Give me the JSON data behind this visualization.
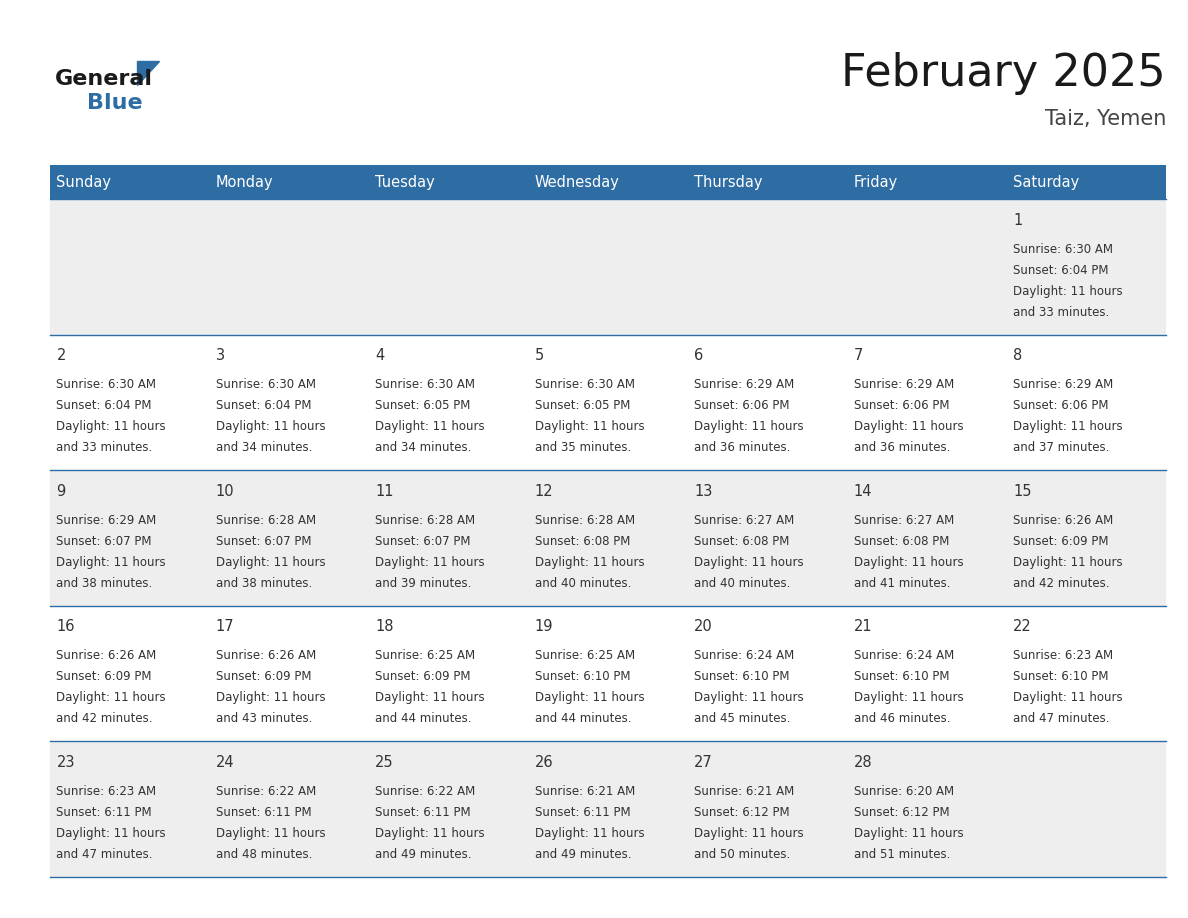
{
  "title": "February 2025",
  "subtitle": "Taiz, Yemen",
  "header_bg": "#2E6DA4",
  "header_text_color": "#FFFFFF",
  "row_bg_odd": "#EEEEEE",
  "row_bg_even": "#FFFFFF",
  "border_color": "#2E6DA4",
  "day_names": [
    "Sunday",
    "Monday",
    "Tuesday",
    "Wednesday",
    "Thursday",
    "Friday",
    "Saturday"
  ],
  "title_color": "#1a1a1a",
  "subtitle_color": "#444444",
  "day_number_color": "#333333",
  "info_color": "#333333",
  "calendar_data": [
    [
      null,
      null,
      null,
      null,
      null,
      null,
      1
    ],
    [
      2,
      3,
      4,
      5,
      6,
      7,
      8
    ],
    [
      9,
      10,
      11,
      12,
      13,
      14,
      15
    ],
    [
      16,
      17,
      18,
      19,
      20,
      21,
      22
    ],
    [
      23,
      24,
      25,
      26,
      27,
      28,
      null
    ]
  ],
  "sunrise": {
    "1": "6:30 AM",
    "2": "6:30 AM",
    "3": "6:30 AM",
    "4": "6:30 AM",
    "5": "6:30 AM",
    "6": "6:29 AM",
    "7": "6:29 AM",
    "8": "6:29 AM",
    "9": "6:29 AM",
    "10": "6:28 AM",
    "11": "6:28 AM",
    "12": "6:28 AM",
    "13": "6:27 AM",
    "14": "6:27 AM",
    "15": "6:26 AM",
    "16": "6:26 AM",
    "17": "6:26 AM",
    "18": "6:25 AM",
    "19": "6:25 AM",
    "20": "6:24 AM",
    "21": "6:24 AM",
    "22": "6:23 AM",
    "23": "6:23 AM",
    "24": "6:22 AM",
    "25": "6:22 AM",
    "26": "6:21 AM",
    "27": "6:21 AM",
    "28": "6:20 AM"
  },
  "sunset": {
    "1": "6:04 PM",
    "2": "6:04 PM",
    "3": "6:04 PM",
    "4": "6:05 PM",
    "5": "6:05 PM",
    "6": "6:06 PM",
    "7": "6:06 PM",
    "8": "6:06 PM",
    "9": "6:07 PM",
    "10": "6:07 PM",
    "11": "6:07 PM",
    "12": "6:08 PM",
    "13": "6:08 PM",
    "14": "6:08 PM",
    "15": "6:09 PM",
    "16": "6:09 PM",
    "17": "6:09 PM",
    "18": "6:09 PM",
    "19": "6:10 PM",
    "20": "6:10 PM",
    "21": "6:10 PM",
    "22": "6:10 PM",
    "23": "6:11 PM",
    "24": "6:11 PM",
    "25": "6:11 PM",
    "26": "6:11 PM",
    "27": "6:12 PM",
    "28": "6:12 PM"
  },
  "daylight": {
    "1": "11 hours and 33 minutes.",
    "2": "11 hours and 33 minutes.",
    "3": "11 hours and 34 minutes.",
    "4": "11 hours and 34 minutes.",
    "5": "11 hours and 35 minutes.",
    "6": "11 hours and 36 minutes.",
    "7": "11 hours and 36 minutes.",
    "8": "11 hours and 37 minutes.",
    "9": "11 hours and 38 minutes.",
    "10": "11 hours and 38 minutes.",
    "11": "11 hours and 39 minutes.",
    "12": "11 hours and 40 minutes.",
    "13": "11 hours and 40 minutes.",
    "14": "11 hours and 41 minutes.",
    "15": "11 hours and 42 minutes.",
    "16": "11 hours and 42 minutes.",
    "17": "11 hours and 43 minutes.",
    "18": "11 hours and 44 minutes.",
    "19": "11 hours and 44 minutes.",
    "20": "11 hours and 45 minutes.",
    "21": "11 hours and 46 minutes.",
    "22": "11 hours and 47 minutes.",
    "23": "11 hours and 47 minutes.",
    "24": "11 hours and 48 minutes.",
    "25": "11 hours and 49 minutes.",
    "26": "11 hours and 49 minutes.",
    "27": "11 hours and 50 minutes.",
    "28": "11 hours and 51 minutes."
  },
  "figsize": [
    11.88,
    9.18
  ],
  "dpi": 100
}
